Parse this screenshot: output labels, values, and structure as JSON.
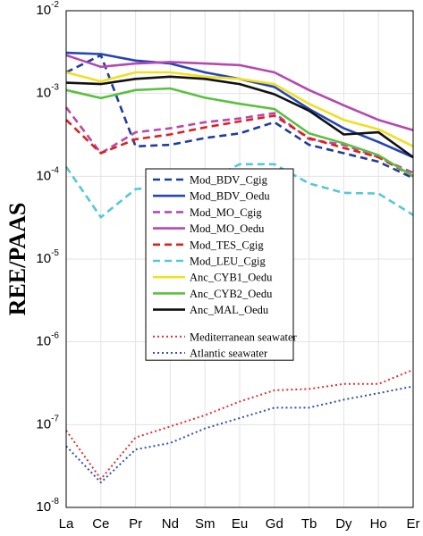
{
  "chart_data": {
    "type": "line",
    "ylabel": "REE/PAAS",
    "xlabel": "",
    "y_scale": "log",
    "ylim": [
      1e-08,
      0.01
    ],
    "y_tick_labels": [
      {
        "base": "10",
        "exp": "-8"
      },
      {
        "base": "10",
        "exp": "-7"
      },
      {
        "base": "10",
        "exp": "-6"
      },
      {
        "base": "10",
        "exp": "-5"
      },
      {
        "base": "10",
        "exp": "-4"
      },
      {
        "base": "10",
        "exp": "-3"
      },
      {
        "base": "10",
        "exp": "-2"
      }
    ],
    "categories": [
      "La",
      "Ce",
      "Pr",
      "Nd",
      "Sm",
      "Eu",
      "Gd",
      "Tb",
      "Dy",
      "Ho",
      "Er"
    ],
    "grid": true,
    "legend_position": "center",
    "series": [
      {
        "name": "Mod_BDV_Cgig",
        "color": "#1f3d99",
        "dash": "dashed",
        "values": [
          0.0018,
          0.0029,
          0.00023,
          0.00024,
          0.00029,
          0.00033,
          0.00045,
          0.00024,
          0.00019,
          0.00015,
          9.5e-05
        ]
      },
      {
        "name": "Mod_BDV_Oedu",
        "color": "#2446b5",
        "dash": "solid",
        "values": [
          0.0031,
          0.003,
          0.0025,
          0.0023,
          0.0018,
          0.0015,
          0.0012,
          0.00065,
          0.00038,
          0.00026,
          0.00017
        ]
      },
      {
        "name": "Mod_MO_Cgig",
        "color": "#b84aa8",
        "dash": "dashed",
        "values": [
          0.00068,
          0.00019,
          0.00034,
          0.00038,
          0.00045,
          0.0005,
          0.00058,
          0.00028,
          0.00024,
          0.00017,
          0.00011
        ]
      },
      {
        "name": "Mod_MO_Oedu",
        "color": "#b449b0",
        "dash": "solid",
        "values": [
          0.0029,
          0.0021,
          0.0023,
          0.0024,
          0.0023,
          0.0022,
          0.0018,
          0.0011,
          0.00072,
          0.00048,
          0.00036
        ]
      },
      {
        "name": "Mod_TES_Cgig",
        "color": "#e02020",
        "dash": "dashed",
        "values": [
          0.00048,
          0.00019,
          0.00028,
          0.00032,
          0.00039,
          0.00046,
          0.00054,
          0.00029,
          0.00022,
          0.00017,
          0.0001
        ]
      },
      {
        "name": "Mod_LEU_Cgig",
        "color": "#54c8d8",
        "dash": "dashed",
        "values": [
          0.00013,
          3.2e-05,
          7e-05,
          7.5e-05,
          8.5e-05,
          0.00014,
          0.00014,
          8.2e-05,
          6.3e-05,
          6.2e-05,
          3.4e-05
        ]
      },
      {
        "name": "Anc_CYB1_Oedu",
        "color": "#f0e020",
        "dash": "solid",
        "values": [
          0.0018,
          0.0014,
          0.0018,
          0.0018,
          0.0016,
          0.0015,
          0.0013,
          0.00075,
          0.00048,
          0.00037,
          0.00023
        ]
      },
      {
        "name": "Anc_CYB2_Oedu",
        "color": "#5cc040",
        "dash": "solid",
        "values": [
          0.0011,
          0.00088,
          0.0011,
          0.00115,
          0.00089,
          0.00075,
          0.00065,
          0.00033,
          0.00025,
          0.00018,
          0.0001
        ]
      },
      {
        "name": "Anc_MAL_Oedu",
        "color": "#111111",
        "dash": "solid",
        "values": [
          0.00135,
          0.0013,
          0.0015,
          0.0016,
          0.0015,
          0.0013,
          0.00098,
          0.00062,
          0.00032,
          0.00034,
          0.00017
        ]
      },
      {
        "name": "Mediterranean seawater",
        "color": "#e03030",
        "dash": "dotted",
        "values": [
          8.5e-08,
          2.2e-08,
          7e-08,
          9.5e-08,
          1.3e-07,
          1.9e-07,
          2.6e-07,
          2.7e-07,
          3.1e-07,
          3.1e-07,
          4.6e-07
        ]
      },
      {
        "name": "Atlantic seawater",
        "color": "#3050b0",
        "dash": "dotted",
        "values": [
          5.5e-08,
          2e-08,
          5e-08,
          6e-08,
          9e-08,
          1.2e-07,
          1.6e-07,
          1.6e-07,
          2e-07,
          2.4e-07,
          2.9e-07
        ]
      }
    ]
  }
}
